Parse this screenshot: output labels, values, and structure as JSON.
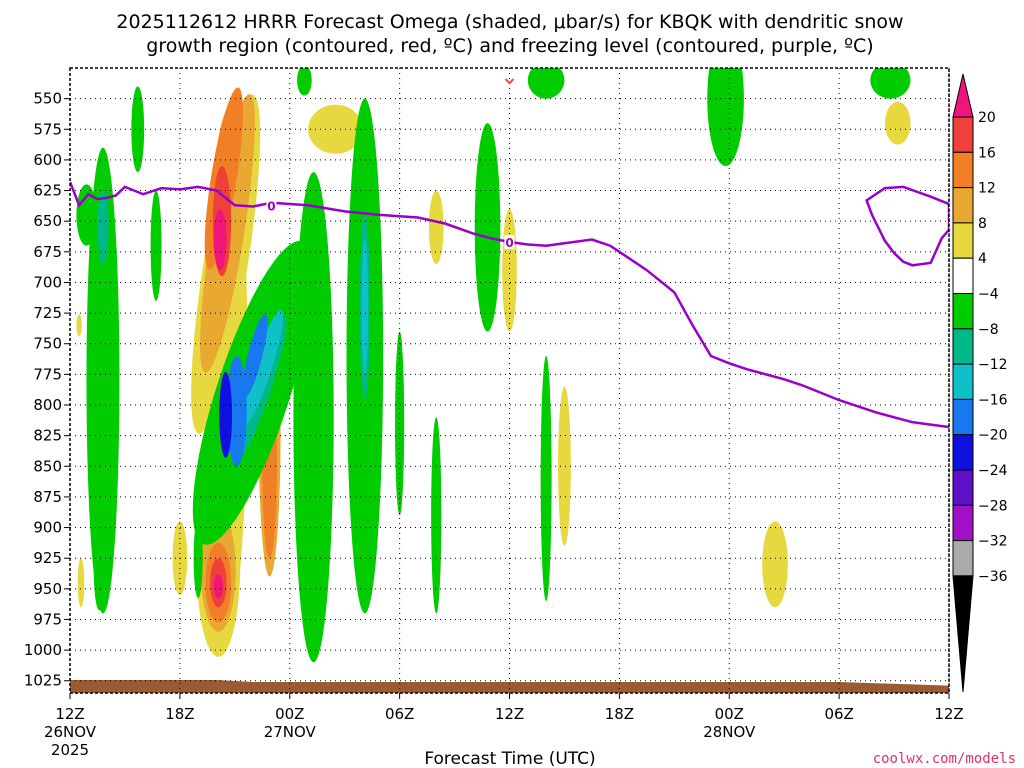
{
  "title": {
    "line1": "2025112612 HRRR Forecast Omega (shaded, μbar/s) for KBQK with dendritic snow",
    "line2": "growth region (contoured, red, ºC) and freezing level (contoured, purple, ºC)"
  },
  "credit": "coolwx.com/models",
  "chart_data": {
    "type": "heatmap",
    "xlabel": "Forecast Time (UTC)",
    "ylabel": "",
    "x_ticks": [
      {
        "hour": 0,
        "label": "12Z",
        "sub": [
          "26NOV",
          "2025"
        ]
      },
      {
        "hour": 6,
        "label": "18Z",
        "sub": []
      },
      {
        "hour": 12,
        "label": "00Z",
        "sub": [
          "27NOV"
        ]
      },
      {
        "hour": 18,
        "label": "06Z",
        "sub": []
      },
      {
        "hour": 24,
        "label": "12Z",
        "sub": []
      },
      {
        "hour": 30,
        "label": "18Z",
        "sub": []
      },
      {
        "hour": 36,
        "label": "00Z",
        "sub": [
          "28NOV"
        ]
      },
      {
        "hour": 42,
        "label": "06Z",
        "sub": []
      },
      {
        "hour": 48,
        "label": "12Z",
        "sub": []
      }
    ],
    "xlim_hours": [
      0,
      48
    ],
    "y_ticks": [
      550,
      575,
      600,
      625,
      650,
      675,
      700,
      725,
      750,
      775,
      800,
      825,
      850,
      875,
      900,
      925,
      950,
      975,
      1000,
      1025
    ],
    "ylim_hPa": [
      525,
      1035
    ],
    "y_direction": "pressure increasing downward",
    "grid": "dotted",
    "colorbar": {
      "labels": [
        "20",
        "16",
        "12",
        "8",
        "4",
        "−4",
        "−8",
        "−12",
        "−16",
        "−20",
        "−24",
        "−28",
        "−32",
        "−36"
      ],
      "colors": [
        "#f0157a",
        "#f0403a",
        "#f07f25",
        "#e8a832",
        "#e8d840",
        "#ffffff",
        "#00cc00",
        "#00b888",
        "#10c0c8",
        "#1878f0",
        "#1010e0",
        "#6010c8",
        "#a010c8",
        "#aaaaaa",
        "#000000"
      ]
    },
    "freezing_level": {
      "color": "#9900cc",
      "label": "0",
      "main": [
        [
          0.0,
          618
        ],
        [
          0.5,
          637
        ],
        [
          1.0,
          628
        ],
        [
          1.5,
          632
        ],
        [
          2.0,
          631
        ],
        [
          2.5,
          629
        ],
        [
          3.0,
          622
        ],
        [
          4.0,
          628
        ],
        [
          5.0,
          623
        ],
        [
          6.0,
          624
        ],
        [
          7.0,
          622
        ],
        [
          8.0,
          625
        ],
        [
          9.0,
          637
        ],
        [
          10.0,
          638
        ],
        [
          11.0,
          635
        ],
        [
          13.0,
          637
        ],
        [
          15.0,
          642
        ],
        [
          17.0,
          645
        ],
        [
          19.0,
          647
        ],
        [
          20.5,
          652
        ],
        [
          22.0,
          660
        ],
        [
          23.0,
          664
        ],
        [
          24.0,
          667
        ],
        [
          25.0,
          669
        ],
        [
          26.0,
          670
        ],
        [
          27.0,
          668
        ],
        [
          28.5,
          665
        ],
        [
          29.5,
          670
        ],
        [
          30.5,
          680
        ],
        [
          31.5,
          690
        ],
        [
          33.0,
          708
        ],
        [
          34.0,
          735
        ],
        [
          35.0,
          760
        ],
        [
          36.0,
          766
        ],
        [
          37.0,
          771
        ],
        [
          38.0,
          775
        ],
        [
          39.0,
          779
        ],
        [
          40.0,
          784
        ],
        [
          41.0,
          790
        ],
        [
          42.0,
          796
        ],
        [
          44.0,
          806
        ],
        [
          46.0,
          814
        ],
        [
          47.0,
          816
        ],
        [
          48.0,
          818
        ]
      ],
      "closed": [
        [
          43.5,
          633
        ],
        [
          44.5,
          623
        ],
        [
          45.5,
          622
        ],
        [
          47.0,
          630
        ],
        [
          48.0,
          636
        ],
        [
          48.0,
          657
        ],
        [
          47.6,
          664
        ],
        [
          47.0,
          684
        ],
        [
          46.0,
          686
        ],
        [
          45.5,
          683
        ],
        [
          45.0,
          676
        ],
        [
          44.5,
          666
        ],
        [
          43.8,
          645
        ]
      ]
    },
    "dgz_markers": [
      {
        "hour": 24,
        "hPa": 534,
        "color": "#ff4040"
      }
    ],
    "omega_regions": [
      {
        "band": "4",
        "hour": 20.0,
        "hPa": 655,
        "w_hr": 0.4,
        "h_hPa": 60,
        "rot": 0
      },
      {
        "band": "4",
        "hour": 24.0,
        "hPa": 690,
        "w_hr": 0.4,
        "h_hPa": 100,
        "rot": 0
      },
      {
        "band": "4",
        "hour": 13.0,
        "hPa": 715,
        "w_hr": 0.5,
        "h_hPa": 110,
        "rot": 0
      },
      {
        "band": "4",
        "hour": 27.0,
        "hPa": 850,
        "w_hr": 0.35,
        "h_hPa": 130,
        "rot": 0
      },
      {
        "band": "4",
        "hour": 38.5,
        "hPa": 930,
        "w_hr": 0.7,
        "h_hPa": 70,
        "rot": 0
      },
      {
        "band": "4",
        "hour": 0.5,
        "hPa": 735,
        "w_hr": 0.15,
        "h_hPa": 18,
        "rot": 0
      },
      {
        "band": "4",
        "hour": 0.6,
        "hPa": 945,
        "w_hr": 0.18,
        "h_hPa": 40,
        "rot": 0
      },
      {
        "band": "4",
        "hour": 6.0,
        "hPa": 925,
        "w_hr": 0.4,
        "h_hPa": 60,
        "rot": 0
      },
      {
        "band": "4",
        "hour": 45.2,
        "hPa": 570,
        "w_hr": 0.7,
        "h_hPa": 35,
        "rot": 0
      },
      {
        "band": "4",
        "hour": 8.6,
        "hPa": 770,
        "w_hr": 1.1,
        "h_hPa": 420,
        "rot": 0
      },
      {
        "band": "4",
        "hour": 14.5,
        "hPa": 575,
        "w_hr": 1.5,
        "h_hPa": 40,
        "rot": 0
      },
      {
        "band": "4",
        "hour": 8.5,
        "hPa": 685,
        "w_hr": 1.2,
        "h_hPa": 280,
        "rot": 9
      },
      {
        "band": "4",
        "hour": 8.1,
        "hPa": 928,
        "w_hr": 1.2,
        "h_hPa": 155,
        "rot": 0
      },
      {
        "band": "8",
        "hour": 8.6,
        "hPa": 660,
        "w_hr": 0.9,
        "h_hPa": 230,
        "rot": 9
      },
      {
        "band": "8",
        "hour": 8.1,
        "hPa": 935,
        "w_hr": 0.95,
        "h_hPa": 100,
        "rot": 0
      },
      {
        "band": "8",
        "hour": 10.9,
        "hPa": 820,
        "w_hr": 0.6,
        "h_hPa": 240,
        "rot": 0
      },
      {
        "band": "12",
        "hour": 8.4,
        "hPa": 615,
        "w_hr": 0.7,
        "h_hPa": 150,
        "rot": 9
      },
      {
        "band": "12",
        "hour": 8.1,
        "hPa": 945,
        "w_hr": 0.7,
        "h_hPa": 65,
        "rot": 0
      },
      {
        "band": "12",
        "hour": 10.9,
        "hPa": 850,
        "w_hr": 0.4,
        "h_hPa": 150,
        "rot": 0
      },
      {
        "band": "16",
        "hour": 8.3,
        "hPa": 650,
        "w_hr": 0.5,
        "h_hPa": 90,
        "rot": 0
      },
      {
        "band": "16",
        "hour": 8.1,
        "hPa": 945,
        "w_hr": 0.45,
        "h_hPa": 40,
        "rot": 0
      },
      {
        "band": "20",
        "hour": 8.2,
        "hPa": 665,
        "w_hr": 0.35,
        "h_hPa": 50,
        "rot": 0
      },
      {
        "band": "20",
        "hour": 8.1,
        "hPa": 948,
        "w_hr": 0.25,
        "h_hPa": 20,
        "rot": 0
      },
      {
        "band": "-4",
        "hour": 1.8,
        "hPa": 780,
        "w_hr": 0.9,
        "h_hPa": 380,
        "rot": 0
      },
      {
        "band": "-4",
        "hour": 0.9,
        "hPa": 645,
        "w_hr": 0.55,
        "h_hPa": 50,
        "rot": 0
      },
      {
        "band": "-4",
        "hour": 3.7,
        "hPa": 575,
        "w_hr": 0.35,
        "h_hPa": 70,
        "rot": 0
      },
      {
        "band": "-4",
        "hour": 4.7,
        "hPa": 670,
        "w_hr": 0.3,
        "h_hPa": 90,
        "rot": 0
      },
      {
        "band": "-4",
        "hour": 1.6,
        "hPa": 935,
        "w_hr": 0.3,
        "h_hPa": 65,
        "rot": 0
      },
      {
        "band": "-4",
        "hour": 7.0,
        "hPa": 925,
        "w_hr": 0.25,
        "h_hPa": 65,
        "rot": 0
      },
      {
        "band": "-4",
        "hour": 10.0,
        "hPa": 790,
        "w_hr": 2.0,
        "h_hPa": 260,
        "rot": 18
      },
      {
        "band": "-4",
        "hour": 13.3,
        "hPa": 810,
        "w_hr": 1.1,
        "h_hPa": 400,
        "rot": 0
      },
      {
        "band": "-4",
        "hour": 12.8,
        "hPa": 535,
        "w_hr": 0.4,
        "h_hPa": 25,
        "rot": 0
      },
      {
        "band": "-4",
        "hour": 16.1,
        "hPa": 760,
        "w_hr": 1.0,
        "h_hPa": 420,
        "rot": 0
      },
      {
        "band": "-4",
        "hour": 18.0,
        "hPa": 815,
        "w_hr": 0.25,
        "h_hPa": 150,
        "rot": 0
      },
      {
        "band": "-4",
        "hour": 20.0,
        "hPa": 890,
        "w_hr": 0.28,
        "h_hPa": 160,
        "rot": 0
      },
      {
        "band": "-4",
        "hour": 22.8,
        "hPa": 655,
        "w_hr": 0.7,
        "h_hPa": 170,
        "rot": 0
      },
      {
        "band": "-4",
        "hour": 26.0,
        "hPa": 860,
        "w_hr": 0.3,
        "h_hPa": 200,
        "rot": 0
      },
      {
        "band": "-4",
        "hour": 26.0,
        "hPa": 535,
        "w_hr": 1.0,
        "h_hPa": 30,
        "rot": 0
      },
      {
        "band": "-4",
        "hour": 35.8,
        "hPa": 550,
        "w_hr": 1.0,
        "h_hPa": 110,
        "rot": 0
      },
      {
        "band": "-4",
        "hour": 44.8,
        "hPa": 535,
        "w_hr": 1.1,
        "h_hPa": 30,
        "rot": 0
      },
      {
        "band": "-8",
        "hour": 1.8,
        "hPa": 655,
        "w_hr": 0.3,
        "h_hPa": 60,
        "rot": 0
      },
      {
        "band": "-8",
        "hour": 10.5,
        "hPa": 785,
        "w_hr": 0.5,
        "h_hPa": 120,
        "rot": 18
      },
      {
        "band": "-8",
        "hour": 16.1,
        "hPa": 720,
        "w_hr": 0.28,
        "h_hPa": 150,
        "rot": 0
      },
      {
        "band": "-12",
        "hour": 10.5,
        "hPa": 770,
        "w_hr": 0.5,
        "h_hPa": 100,
        "rot": 18
      },
      {
        "band": "-12",
        "hour": 16.1,
        "hPa": 720,
        "w_hr": 0.18,
        "h_hPa": 110,
        "rot": 0
      },
      {
        "band": "-16",
        "hour": 9.1,
        "hPa": 805,
        "w_hr": 0.55,
        "h_hPa": 90,
        "rot": 0
      },
      {
        "band": "-16",
        "hour": 10.1,
        "hPa": 760,
        "w_hr": 0.4,
        "h_hPa": 70,
        "rot": 14
      },
      {
        "band": "-20",
        "hour": 8.5,
        "hPa": 808,
        "w_hr": 0.35,
        "h_hPa": 70,
        "rot": 0
      }
    ]
  }
}
